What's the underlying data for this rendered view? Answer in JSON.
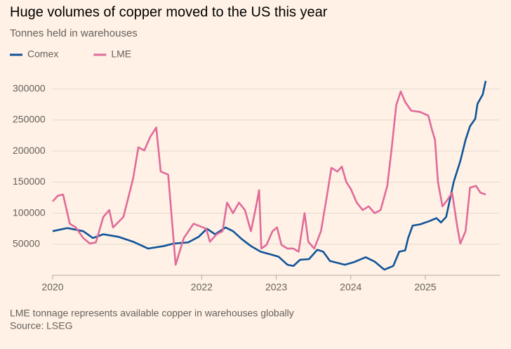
{
  "chart_data": {
    "type": "line",
    "title": "Huge volumes of copper moved to the US this year",
    "subtitle": "Tonnes held in warehouses",
    "notes": "LME tonnage represents available copper in warehouses globally",
    "source": "Source: LSEG",
    "xlim": [
      2020,
      2025.82
    ],
    "xticks": [
      2020,
      2022,
      2023,
      2024,
      2025
    ],
    "ylim": [
      0,
      320000
    ],
    "yticks": [
      50000,
      100000,
      150000,
      200000,
      250000,
      300000
    ],
    "grid": true,
    "legend": "top-left",
    "series": [
      {
        "name": "Comex",
        "color": "#0f5499",
        "x": [
          2020.0,
          2020.2,
          2020.41,
          2020.54,
          2020.68,
          2020.88,
          2021.08,
          2021.28,
          2021.49,
          2021.62,
          2021.82,
          2021.96,
          2022.07,
          2022.18,
          2022.32,
          2022.42,
          2022.54,
          2022.66,
          2022.79,
          2022.91,
          2023.03,
          2023.15,
          2023.23,
          2023.32,
          2023.44,
          2023.55,
          2023.63,
          2023.72,
          2023.92,
          2024.04,
          2024.2,
          2024.32,
          2024.45,
          2024.57,
          2024.65,
          2024.73,
          2024.77,
          2024.83,
          2024.93,
          2025.05,
          2025.15,
          2025.21,
          2025.28,
          2025.38,
          2025.47,
          2025.54,
          2025.6,
          2025.67,
          2025.7,
          2025.77,
          2025.81
        ],
        "values": [
          71000,
          76000,
          71000,
          60000,
          66000,
          62000,
          54000,
          43000,
          47000,
          51000,
          53000,
          62000,
          75000,
          66000,
          77000,
          71000,
          58000,
          47000,
          38000,
          34000,
          30000,
          17000,
          15000,
          25000,
          26000,
          41000,
          38000,
          23000,
          17000,
          21000,
          29000,
          22000,
          9000,
          15000,
          38000,
          40000,
          60000,
          80000,
          82000,
          87000,
          92000,
          85000,
          94000,
          150000,
          184000,
          218000,
          240000,
          252000,
          276000,
          291000,
          313000
        ]
      },
      {
        "name": "LME",
        "color": "#e06b9a",
        "x": [
          2020.0,
          2020.07,
          2020.14,
          2020.23,
          2020.31,
          2020.41,
          2020.5,
          2020.58,
          2020.68,
          2020.76,
          2020.81,
          2020.95,
          2021.08,
          2021.15,
          2021.23,
          2021.31,
          2021.39,
          2021.45,
          2021.55,
          2021.65,
          2021.76,
          2021.89,
          2022.06,
          2022.11,
          2022.2,
          2022.28,
          2022.34,
          2022.42,
          2022.5,
          2022.58,
          2022.66,
          2022.72,
          2022.77,
          2022.8,
          2022.87,
          2022.95,
          2023.01,
          2023.07,
          2023.15,
          2023.23,
          2023.3,
          2023.38,
          2023.43,
          2023.51,
          2023.6,
          2023.68,
          2023.74,
          2023.82,
          2023.88,
          2023.94,
          2024.0,
          2024.08,
          2024.16,
          2024.24,
          2024.32,
          2024.4,
          2024.49,
          2024.55,
          2024.61,
          2024.67,
          2024.73,
          2024.81,
          2024.93,
          2025.04,
          2025.09,
          2025.13,
          2025.17,
          2025.23,
          2025.3,
          2025.36,
          2025.43,
          2025.47,
          2025.54,
          2025.6,
          2025.68,
          2025.74,
          2025.81
        ],
        "values": [
          119000,
          128000,
          130000,
          83000,
          77000,
          60000,
          51000,
          53000,
          94000,
          105000,
          77000,
          94000,
          156000,
          206000,
          201000,
          223000,
          238000,
          167000,
          162000,
          17000,
          60000,
          83000,
          75000,
          54000,
          66000,
          71000,
          117000,
          100000,
          117000,
          105000,
          71000,
          105000,
          137000,
          43000,
          49000,
          71000,
          77000,
          49000,
          43000,
          43000,
          38000,
          100000,
          54000,
          43000,
          71000,
          128000,
          173000,
          167000,
          175000,
          150000,
          139000,
          117000,
          105000,
          111000,
          100000,
          105000,
          144000,
          206000,
          274000,
          296000,
          279000,
          265000,
          263000,
          257000,
          234000,
          218000,
          150000,
          111000,
          122000,
          133000,
          77000,
          51000,
          71000,
          141000,
          144000,
          133000,
          130000
        ]
      }
    ]
  }
}
